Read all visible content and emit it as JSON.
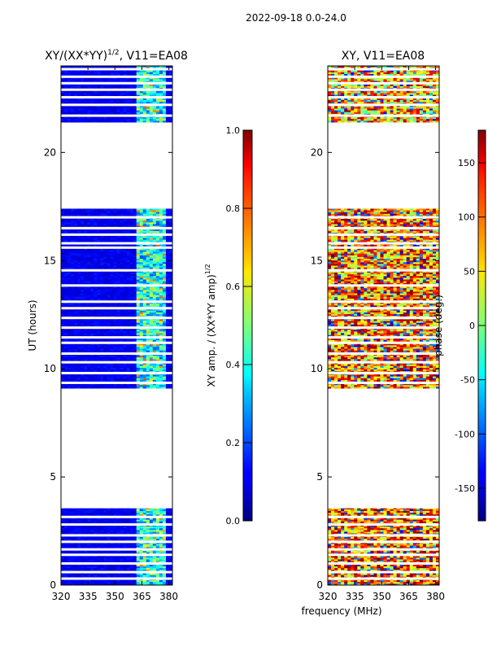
{
  "figure": {
    "suptitle": "2022-09-18 0.0-24.0",
    "xlabel": "frequency (MHz)"
  },
  "chart_data": [
    {
      "type": "heatmap",
      "title": "XY/(XX*YY)",
      "title_exponent": "1/2",
      "title_suffix": ", V11=EA08",
      "ylabel": "UT (hours)",
      "xlim": [
        320,
        382
      ],
      "ylim": [
        0,
        24
      ],
      "x_ticks": [
        "320",
        "335",
        "350",
        "365",
        "380"
      ],
      "x_tick_values": [
        320,
        335,
        350,
        365,
        380
      ],
      "y_ticks": [
        "0",
        "5",
        "10",
        "15",
        "20"
      ],
      "y_tick_values": [
        0,
        5,
        10,
        15,
        20
      ],
      "data_ranges_hours": [
        [
          0,
          3.55
        ],
        [
          9.1,
          17.4
        ],
        [
          21.4,
          24
        ]
      ],
      "gap_rows_hours": [
        0.3,
        0.6,
        1.0,
        1.4,
        1.65,
        2.0,
        2.3,
        2.8,
        3.15,
        9.35,
        9.8,
        10.3,
        10.7,
        11.2,
        11.45,
        11.9,
        12.35,
        12.8,
        13.1,
        13.85,
        14.55,
        15.6,
        15.8,
        16.2,
        16.5,
        17.0,
        21.7,
        22.2,
        22.55,
        22.9,
        23.2,
        23.5,
        23.85
      ],
      "colorbar": {
        "label": "XY amp. / (XX*YY amp)",
        "label_exponent": "1/2",
        "ticks": [
          "0.0",
          "0.2",
          "0.4",
          "0.6",
          "0.8",
          "1.0"
        ],
        "tick_values": [
          0,
          0.2,
          0.4,
          0.6,
          0.8,
          1.0
        ],
        "range": [
          0,
          1
        ]
      }
    },
    {
      "type": "heatmap",
      "title": "XY, V11=EA08",
      "xlim": [
        320,
        382
      ],
      "ylim": [
        0,
        24
      ],
      "x_ticks": [
        "320",
        "335",
        "350",
        "365",
        "380"
      ],
      "x_tick_values": [
        320,
        335,
        350,
        365,
        380
      ],
      "y_ticks": [
        "0",
        "5",
        "10",
        "15",
        "20"
      ],
      "y_tick_values": [
        0,
        5,
        10,
        15,
        20
      ],
      "data_ranges_hours": [
        [
          0,
          3.55
        ],
        [
          9.1,
          17.4
        ],
        [
          21.4,
          24
        ]
      ],
      "gap_rows_hours": [
        0.3,
        0.6,
        1.0,
        1.4,
        1.65,
        2.0,
        2.3,
        2.8,
        3.15,
        9.35,
        9.8,
        10.3,
        10.7,
        11.2,
        11.45,
        11.9,
        12.35,
        12.8,
        13.1,
        13.85,
        14.55,
        15.6,
        15.8,
        16.2,
        16.5,
        17.0,
        21.7,
        22.2,
        22.55,
        22.9,
        23.2,
        23.5,
        23.85
      ],
      "colorbar": {
        "label": "phase (deg.)",
        "ticks": [
          "-150",
          "-100",
          "-50",
          "0",
          "50",
          "100",
          "150"
        ],
        "tick_values": [
          -150,
          -100,
          -50,
          0,
          50,
          100,
          150
        ],
        "range": [
          -180,
          180
        ]
      }
    }
  ]
}
